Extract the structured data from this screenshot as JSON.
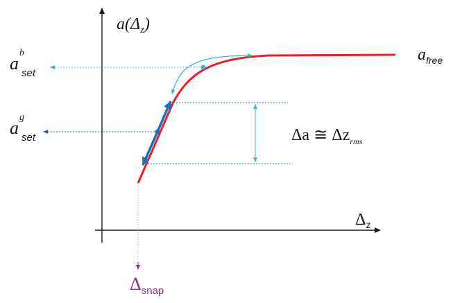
{
  "labels": {
    "y_axis_main": "a(Δ",
    "y_axis_sub": "z",
    "y_axis_close": ")",
    "x_axis_main": "Δ",
    "x_axis_sub": "z",
    "free_main": "a",
    "free_sub": "free",
    "set_b_main": "a",
    "set_b_sup": "b",
    "set_b_sub": "set",
    "set_g_main": "a",
    "set_g_sup": "g",
    "set_g_sub": "set",
    "delta_a_eq": "Δa ≅ Δz",
    "delta_a_sub": "rms",
    "snap_main": "Δ",
    "snap_sub": "snap"
  },
  "colors": {
    "curve": "#e8202a",
    "axis": "#1a1a1a",
    "dark_blue": "#1f6fb7",
    "light_blue": "#3cb4d6",
    "gray_dotted": "#b0b0b0",
    "snap": "#8a2a8c"
  }
}
